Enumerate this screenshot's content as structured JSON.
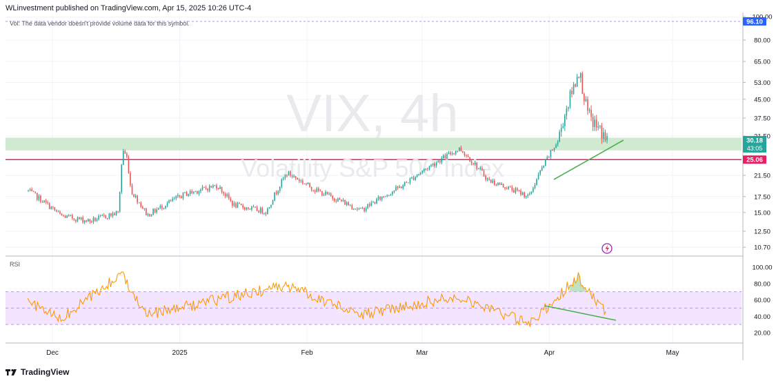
{
  "header": {
    "published": "WLinvestment published on TradingView.com, Apr 15, 2025 10:26 UTC-4"
  },
  "watermark": {
    "symbol": "VIX, 4h",
    "name": "Volatility S&P 500 Index"
  },
  "main_pane": {
    "volume_note": "Vol: The data vendor doesn't provide volume data for this symbol.",
    "y_ticks": [
      "100.00",
      "80.00",
      "65.00",
      "53.00",
      "45.00",
      "37.50",
      "31.50",
      "21.50",
      "17.50",
      "15.00",
      "12.50",
      "10.70"
    ],
    "badges": {
      "top": "96.10",
      "current_price": "30.18",
      "countdown": "43:05",
      "level": "25.06"
    },
    "colors": {
      "up": "#26a69a",
      "down": "#ef5350",
      "support_zone": "#c8e6c9",
      "level_line": "#e91e63",
      "trendline": "#4caf50",
      "badge_blue": "#2962ff",
      "current_badge": "#26a69a"
    }
  },
  "rsi_pane": {
    "label": "RSI",
    "y_ticks": [
      "100.00",
      "80.00",
      "60.00",
      "40.00",
      "20.00"
    ],
    "colors": {
      "line": "#ff9800",
      "band": "#f3e5ff",
      "trend": "#4caf50"
    }
  },
  "x_axis": {
    "labels": [
      "Dec",
      "2025",
      "Feb",
      "Mar",
      "Apr",
      "May"
    ]
  },
  "footer": {
    "brand": "TradingView"
  },
  "chart_data": {
    "type": "candlestick",
    "title": "VIX, 4h",
    "subtitle": "Volatility S&P 500 Index",
    "x": [
      "Dec",
      "2025",
      "Feb",
      "Mar",
      "Apr",
      "May"
    ],
    "price_anchors": [
      {
        "date": "Nov 25",
        "price": 18.5
      },
      {
        "date": "Dec 3",
        "price": 14.5
      },
      {
        "date": "Dec 10",
        "price": 13.8
      },
      {
        "date": "Dec 17",
        "price": 15.0
      },
      {
        "date": "Dec 18",
        "price": 27.6
      },
      {
        "date": "Dec 19",
        "price": 25.5
      },
      {
        "date": "Dec 20",
        "price": 18.5
      },
      {
        "date": "Dec 24",
        "price": 14.6
      },
      {
        "date": "Jan 2",
        "price": 17.9
      },
      {
        "date": "Jan 10",
        "price": 19.5
      },
      {
        "date": "Jan 14",
        "price": 16.1
      },
      {
        "date": "Jan 22",
        "price": 15.1
      },
      {
        "date": "Jan 27",
        "price": 22.0
      },
      {
        "date": "Feb 3",
        "price": 18.6
      },
      {
        "date": "Feb 14",
        "price": 15.3
      },
      {
        "date": "Feb 24",
        "price": 19.4
      },
      {
        "date": "Mar 10",
        "price": 27.9
      },
      {
        "date": "Mar 17",
        "price": 20.5
      },
      {
        "date": "Mar 27",
        "price": 17.5
      },
      {
        "date": "Apr 3",
        "price": 30.0
      },
      {
        "date": "Apr 7",
        "price": 52.0
      },
      {
        "date": "Apr 8",
        "price": 60.0
      },
      {
        "date": "Apr 10",
        "price": 40.0
      },
      {
        "date": "Apr 11",
        "price": 37.0
      },
      {
        "date": "Apr 15",
        "price": 30.18
      }
    ],
    "horizontal_levels": [
      {
        "value": 25.06
      }
    ],
    "rsi_levels": [
      70,
      50,
      30
    ],
    "rsi_anchors": [
      {
        "date": "Nov 25",
        "rsi": 58
      },
      {
        "date": "Dec 3",
        "rsi": 36
      },
      {
        "date": "Dec 18",
        "rsi": 92
      },
      {
        "date": "Dec 24",
        "rsi": 42
      },
      {
        "date": "Jan 27",
        "rsi": 78
      },
      {
        "date": "Feb 14",
        "rsi": 42
      },
      {
        "date": "Mar 10",
        "rsi": 65
      },
      {
        "date": "Mar 27",
        "rsi": 30
      },
      {
        "date": "Apr 8",
        "rsi": 88
      },
      {
        "date": "Apr 15",
        "rsi": 42
      }
    ]
  }
}
